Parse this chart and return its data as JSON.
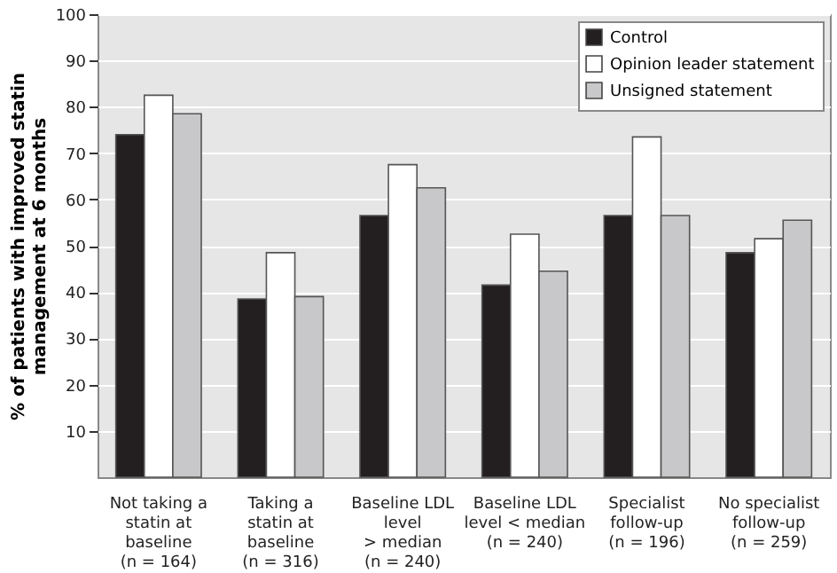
{
  "chart_data": {
    "type": "bar",
    "ylabel": "% of patients with improved statin\nmanagement at 6 months",
    "categories": [
      "Not taking a\nstatin at\nbaseline\n(n = 164)",
      "Taking a\nstatin at\nbaseline\n(n = 316)",
      "Baseline LDL\nlevel\n> median\n(n = 240)",
      "Baseline LDL\nlevel < median\n(n = 240)",
      "Specialist\nfollow-up\n(n = 196)",
      "No specialist\nfollow-up\n(n = 259)"
    ],
    "series": [
      {
        "name": "Control",
        "color": "#231f20",
        "values": [
          74,
          38.5,
          56.5,
          41.5,
          56.5,
          48.5
        ]
      },
      {
        "name": "Opinion leader statement",
        "color": "#ffffff",
        "values": [
          82.5,
          48.5,
          67.5,
          52.5,
          73.5,
          51.5
        ]
      },
      {
        "name": "Unsigned statement",
        "color": "#c8c8ca",
        "values": [
          78.5,
          39,
          62.5,
          44.5,
          56.5,
          55.5
        ]
      }
    ],
    "ylim": [
      0,
      100
    ],
    "yticks": [
      10,
      20,
      30,
      40,
      50,
      60,
      70,
      80,
      90,
      100
    ],
    "grid": "y",
    "legend": "top right"
  }
}
